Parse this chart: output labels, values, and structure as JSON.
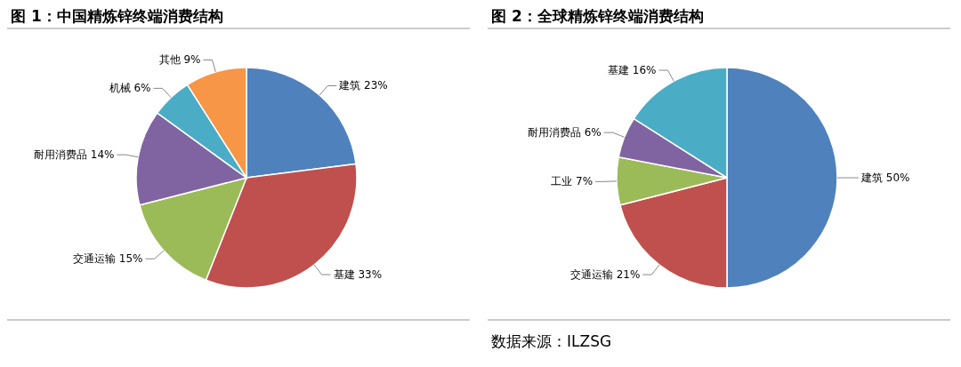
{
  "chart_data": [
    {
      "type": "pie",
      "title": "图 1：中国精炼锌终端消费结构",
      "categories": [
        "建筑",
        "基建",
        "交通运输",
        "耐用消费品",
        "机械",
        "其他"
      ],
      "values": [
        23,
        33,
        15,
        14,
        6,
        9
      ],
      "value_labels": [
        "23%",
        "33%",
        "15%",
        "14%",
        "6%",
        "9%"
      ],
      "colors": [
        "#4f81bd",
        "#c0504d",
        "#9bbb59",
        "#8064a2",
        "#4bacc6",
        "#f79646"
      ]
    },
    {
      "type": "pie",
      "title": "图 2：全球精炼锌终端消费结构",
      "categories": [
        "建筑",
        "交通运输",
        "工业",
        "耐用消费品",
        "基建"
      ],
      "values": [
        50,
        21,
        7,
        6,
        16
      ],
      "value_labels": [
        "50%",
        "21%",
        "7%",
        "6%",
        "16%"
      ],
      "colors": [
        "#4f81bd",
        "#c0504d",
        "#9bbb59",
        "#8064a2",
        "#4bacc6"
      ],
      "annotations": [
        "数据来源：ILZSG"
      ]
    }
  ]
}
